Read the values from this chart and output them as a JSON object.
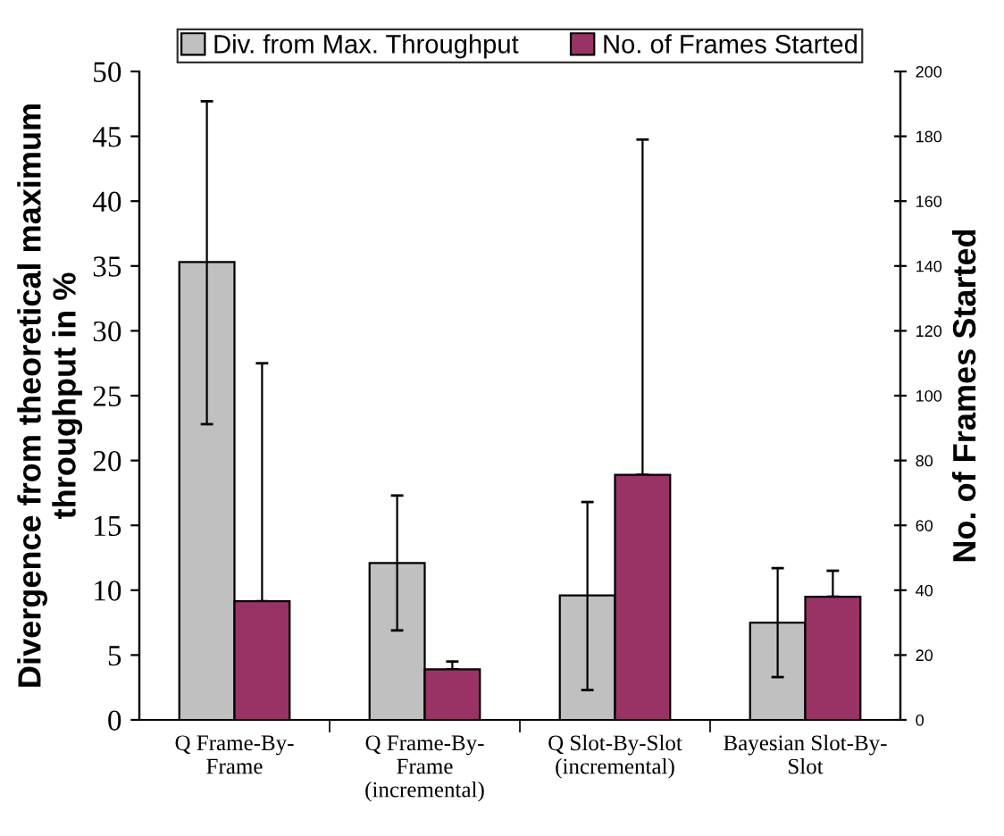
{
  "chart_data": {
    "type": "bar",
    "categories": [
      "Q Frame-By-\nFrame",
      "Q Frame-By-\nFrame\n(incremental)",
      "Q Slot-By-Slot\n(incremental)",
      "Bayesian Slot-By-\nSlot"
    ],
    "series": [
      {
        "name": "Div. from Max. Throughput",
        "color": "#c0c0c0",
        "values": [
          35.3,
          12.1,
          9.6,
          7.5
        ],
        "errors": [
          [
            22.8,
            47.7
          ],
          [
            6.9,
            17.3
          ],
          [
            2.3,
            16.8
          ],
          [
            3.3,
            11.7
          ]
        ]
      },
      {
        "name": "No. of Frames Started",
        "color": "#993366",
        "axis": "y2",
        "values": [
          36.6,
          15.6,
          75.6,
          38
        ],
        "errors": [
          [
            36.6,
            110
          ],
          [
            15.6,
            18
          ],
          [
            75.6,
            179
          ],
          [
            38,
            46
          ]
        ]
      }
    ],
    "ylabel": "Divergence from theoretical maximum\nthroughput in %",
    "y2label": "No. of Frames Started",
    "ylim": [
      0,
      50
    ],
    "yticks": [
      0,
      5,
      10,
      15,
      20,
      25,
      30,
      35,
      40,
      45,
      50
    ],
    "y2lim": [
      0,
      200
    ],
    "y2ticks": [
      0,
      20,
      40,
      60,
      80,
      100,
      120,
      140,
      160,
      180,
      200
    ],
    "grid": false,
    "legend": "top"
  }
}
